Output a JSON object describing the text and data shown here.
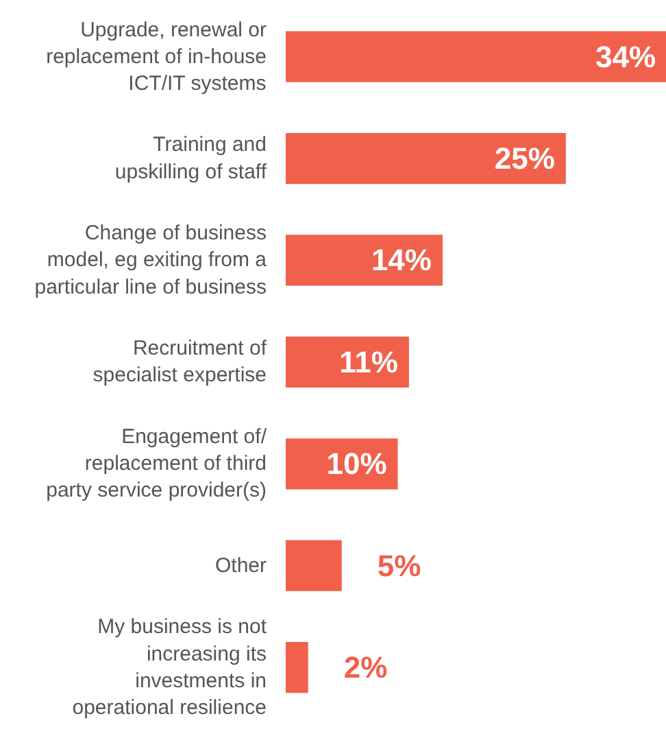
{
  "chart_data": {
    "type": "bar",
    "orientation": "horizontal",
    "data_labels": true,
    "color": "#f0604b",
    "categories": [
      "Upgrade, renewal or\nreplacement of in-house\nICT/IT systems",
      "Training and\nupskilling of staff",
      "Change of business\nmodel, eg exiting from a\nparticular line of business",
      "Recruitment of\nspecialist expertise",
      "Engagement of/\nreplacement of third\nparty service provider(s)",
      "Other",
      "My business is not\nincreasing its\ninvestments in\noperational resilience"
    ],
    "values": [
      34,
      25,
      14,
      11,
      10,
      5,
      2
    ],
    "value_labels": [
      "34%",
      "25%",
      "14%",
      "11%",
      "10%",
      "5%",
      "2%"
    ]
  }
}
